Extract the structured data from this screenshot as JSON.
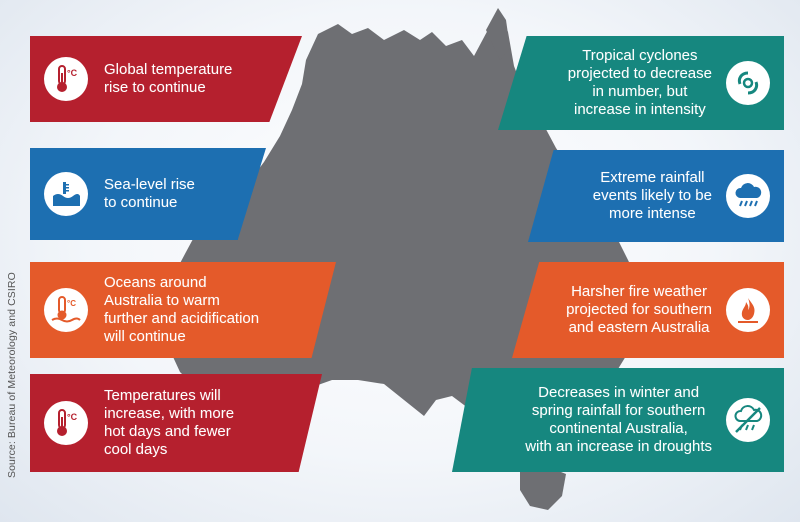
{
  "source": "Source: Bureau of Meteorology and CSIRO",
  "panels": {
    "global_temp": {
      "text": "Global temperature\nrise to continue",
      "icon": "thermometer-celsius-icon",
      "color": "#b5202e"
    },
    "sea_level": {
      "text": "Sea-level rise\nto continue",
      "icon": "sea-level-icon",
      "color": "#1d6fb1"
    },
    "oceans": {
      "text": "Oceans around\nAustralia to warm\nfurther and acidification\nwill continue",
      "icon": "ocean-thermometer-icon",
      "color": "#e45a2a"
    },
    "temperatures": {
      "text": "Temperatures will\nincrease, with more\nhot days and fewer\ncool days",
      "icon": "thermometer-celsius-icon",
      "color": "#b5202e"
    },
    "cyclones": {
      "text": "Tropical cyclones\nprojected to decrease\nin number, but\nincrease in intensity",
      "icon": "cyclone-icon",
      "color": "#16877f"
    },
    "rainfall": {
      "text": "Extreme rainfall\nevents likely to be\nmore intense",
      "icon": "rain-cloud-icon",
      "color": "#1d6fb1"
    },
    "fire": {
      "text": "Harsher fire weather\nprojected for southern\nand eastern Australia",
      "icon": "fire-icon",
      "color": "#e45a2a"
    },
    "drought": {
      "text": "Decreases in winter and\nspring rainfall for southern\ncontinental Australia,\nwith an increase in droughts",
      "icon": "no-rain-icon",
      "color": "#16877f"
    }
  }
}
